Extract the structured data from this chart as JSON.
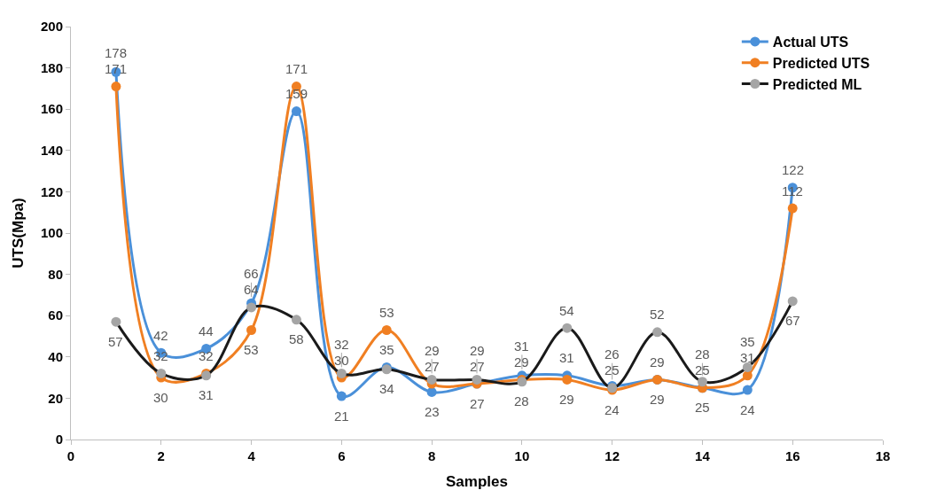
{
  "chart_data": {
    "type": "line",
    "xlabel": "Samples",
    "ylabel": "UTS(Mpa)",
    "x": [
      1,
      2,
      3,
      4,
      5,
      6,
      7,
      8,
      9,
      10,
      11,
      12,
      13,
      14,
      15,
      16
    ],
    "series": [
      {
        "name": "Actual UTS",
        "color": "#4a90d9",
        "values": [
          178,
          42,
          44,
          66,
          159,
          21,
          35,
          23,
          27,
          31,
          31,
          26,
          29,
          25,
          24,
          122
        ]
      },
      {
        "name": "Predicted UTS",
        "color": "#f07f22",
        "values": [
          171,
          30,
          32,
          53,
          171,
          30,
          53,
          27,
          27,
          29,
          29,
          24,
          29,
          25,
          31,
          112
        ]
      },
      {
        "name": "Predicted ML",
        "color": "#1a1a1a",
        "colors": [
          "#a5a5a5",
          "#a5a5a5",
          "#a5a5a5",
          "#a5a5a5",
          "#a5a5a5",
          "#a5a5a5",
          "#a5a5a5",
          "#a5a5a5",
          "#a5a5a5",
          "#a5a5a5",
          "#a5a5a5",
          "#a5a5a5",
          "#a5a5a5",
          "#a5a5a5",
          "#a5a5a5",
          "#a5a5a5"
        ],
        "values": [
          57,
          32,
          31,
          64,
          58,
          32,
          34,
          29,
          29,
          28,
          54,
          25,
          52,
          28,
          35,
          67
        ]
      }
    ],
    "xlim": [
      0,
      18
    ],
    "xticks": [
      0,
      2,
      4,
      6,
      8,
      10,
      12,
      14,
      16,
      18
    ],
    "ylim": [
      0,
      200
    ],
    "yticks": [
      0,
      20,
      40,
      60,
      80,
      100,
      120,
      140,
      160,
      180,
      200
    ],
    "grid": false,
    "legend": "top right",
    "marker": "circle",
    "line_style": "solid",
    "data_labels": true
  }
}
